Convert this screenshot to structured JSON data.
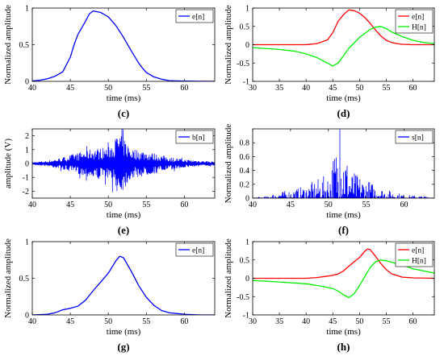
{
  "chart_data": [
    {
      "type": "line",
      "caption": "(c)",
      "xlabel": "time (ms)",
      "ylabel": "Normalized amplitude",
      "xlim": [
        40,
        64
      ],
      "ylim": [
        0,
        1
      ],
      "xticks": [
        40,
        45,
        50,
        55,
        60
      ],
      "yticks": [
        0,
        0.5,
        1
      ],
      "legend": "top-right",
      "series": [
        {
          "name": "e[n]",
          "color": "#0000ff",
          "x": [
            40,
            41,
            42,
            43,
            44,
            45,
            45.5,
            46,
            47,
            47.5,
            48,
            49,
            50,
            51,
            52,
            53,
            54,
            54.5,
            55,
            56,
            57,
            58,
            60,
            62,
            64
          ],
          "y": [
            0.005,
            0.015,
            0.035,
            0.07,
            0.13,
            0.33,
            0.5,
            0.64,
            0.82,
            0.92,
            0.96,
            0.94,
            0.88,
            0.76,
            0.6,
            0.42,
            0.25,
            0.18,
            0.12,
            0.06,
            0.03,
            0.01,
            0.003,
            0.001,
            0
          ]
        }
      ]
    },
    {
      "type": "line",
      "caption": "(d)",
      "xlabel": "time (ms)",
      "ylabel": "Normalized amplitude",
      "xlim": [
        30,
        64
      ],
      "ylim": [
        -1,
        1
      ],
      "xticks": [
        30,
        35,
        40,
        45,
        50,
        55,
        60
      ],
      "yticks": [
        -1,
        -0.5,
        0,
        0.5,
        1
      ],
      "legend": "top-right",
      "series": [
        {
          "name": "e[n]",
          "color": "#ff0000",
          "x": [
            30,
            35,
            40,
            42,
            44,
            45,
            46,
            47,
            48,
            49,
            50,
            51,
            52,
            53,
            54,
            55,
            56,
            57,
            58,
            60,
            64
          ],
          "y": [
            0,
            0,
            0,
            0.03,
            0.13,
            0.33,
            0.64,
            0.82,
            0.95,
            0.93,
            0.86,
            0.74,
            0.58,
            0.4,
            0.24,
            0.12,
            0.06,
            0.03,
            0.01,
            0,
            0
          ]
        },
        {
          "name": "H[n]",
          "color": "#00ee00",
          "x": [
            30,
            32,
            35,
            38,
            40,
            42,
            44,
            45,
            46,
            47,
            48,
            50,
            52,
            53,
            54,
            55,
            56,
            58,
            60,
            62,
            64
          ],
          "y": [
            -0.08,
            -0.1,
            -0.13,
            -0.18,
            -0.25,
            -0.35,
            -0.5,
            -0.58,
            -0.5,
            -0.3,
            -0.1,
            0.2,
            0.42,
            0.48,
            0.5,
            0.44,
            0.35,
            0.22,
            0.12,
            0.06,
            0.03
          ]
        }
      ]
    },
    {
      "type": "line",
      "caption": "(e)",
      "xlabel": "time (ms)",
      "ylabel": "amplitude (V)",
      "xlim": [
        40,
        64
      ],
      "ylim": [
        -2.5,
        2.5
      ],
      "xticks": [
        40,
        45,
        50,
        55,
        60
      ],
      "yticks": [
        -2,
        -1,
        0,
        1,
        2
      ],
      "legend": "top-right",
      "series": [
        {
          "name": "b[n]",
          "color": "#0000ff",
          "kind": "noise",
          "envelope_x": [
            40,
            42,
            44,
            46,
            48,
            50,
            51.5,
            53,
            55,
            57,
            60,
            64
          ],
          "envelope_y": [
            0.1,
            0.2,
            0.45,
            0.8,
            1.1,
            1.2,
            2.3,
            1.1,
            0.9,
            0.6,
            0.3,
            0.15
          ]
        }
      ]
    },
    {
      "type": "line",
      "caption": "(f)",
      "xlabel": "time (ms)",
      "ylabel": "Normalized amplitude",
      "xlim": [
        40,
        64
      ],
      "ylim": [
        0,
        1
      ],
      "xticks": [
        40,
        45,
        50,
        55,
        60
      ],
      "yticks": [
        0,
        0.2,
        0.4,
        0.6,
        0.8
      ],
      "legend": "top-right",
      "series": [
        {
          "name": "s[n]",
          "color": "#0000ff",
          "kind": "spikes",
          "envelope_x": [
            40,
            42,
            43,
            45,
            47,
            49,
            50,
            51.5,
            53,
            55,
            57,
            60,
            64
          ],
          "envelope_y": [
            0.01,
            0.03,
            0.08,
            0.12,
            0.18,
            0.3,
            0.35,
            1.0,
            0.4,
            0.28,
            0.15,
            0.05,
            0.02
          ]
        }
      ]
    },
    {
      "type": "line",
      "caption": "(g)",
      "xlabel": "time (ms)",
      "ylabel": "Normalized amplitude",
      "xlim": [
        40,
        64
      ],
      "ylim": [
        0,
        1
      ],
      "xticks": [
        40,
        45,
        50,
        55,
        60
      ],
      "yticks": [
        0,
        0.5,
        1
      ],
      "legend": "top-right",
      "series": [
        {
          "name": "e[n]",
          "color": "#0000ff",
          "x": [
            40,
            42,
            43,
            44,
            45,
            46,
            47,
            48,
            49,
            50,
            51,
            51.5,
            52,
            53,
            54,
            55,
            56,
            57,
            58,
            60,
            62,
            64
          ],
          "y": [
            0,
            0.01,
            0.03,
            0.07,
            0.09,
            0.12,
            0.2,
            0.33,
            0.45,
            0.57,
            0.74,
            0.8,
            0.78,
            0.6,
            0.4,
            0.24,
            0.13,
            0.06,
            0.03,
            0.01,
            0,
            0
          ]
        }
      ]
    },
    {
      "type": "line",
      "caption": "(h)",
      "xlabel": "time (ms)",
      "ylabel": "Normalized amplitude",
      "xlim": [
        30,
        64
      ],
      "ylim": [
        -1,
        1
      ],
      "xticks": [
        30,
        35,
        40,
        45,
        50,
        55,
        60
      ],
      "yticks": [
        -1,
        -0.5,
        0,
        0.5,
        1
      ],
      "legend": "top-right",
      "series": [
        {
          "name": "e[n]",
          "color": "#ff0000",
          "x": [
            30,
            35,
            40,
            42,
            44,
            45,
            46,
            47,
            48,
            49,
            50,
            51,
            51.5,
            52,
            53,
            54,
            55,
            56,
            58,
            60,
            64
          ],
          "y": [
            0,
            0,
            0,
            0.02,
            0.06,
            0.08,
            0.12,
            0.2,
            0.33,
            0.45,
            0.57,
            0.74,
            0.8,
            0.78,
            0.6,
            0.4,
            0.24,
            0.12,
            0.03,
            0.01,
            0
          ]
        },
        {
          "name": "H[n]",
          "color": "#00ee00",
          "x": [
            30,
            35,
            40,
            43,
            45,
            46,
            47,
            48,
            49,
            50,
            51,
            52,
            53,
            54,
            55,
            56,
            58,
            60,
            62,
            64
          ],
          "y": [
            -0.06,
            -0.1,
            -0.15,
            -0.22,
            -0.28,
            -0.35,
            -0.45,
            -0.53,
            -0.42,
            -0.2,
            0.05,
            0.3,
            0.45,
            0.5,
            0.48,
            0.44,
            0.36,
            0.26,
            0.2,
            0.14
          ]
        }
      ]
    }
  ]
}
